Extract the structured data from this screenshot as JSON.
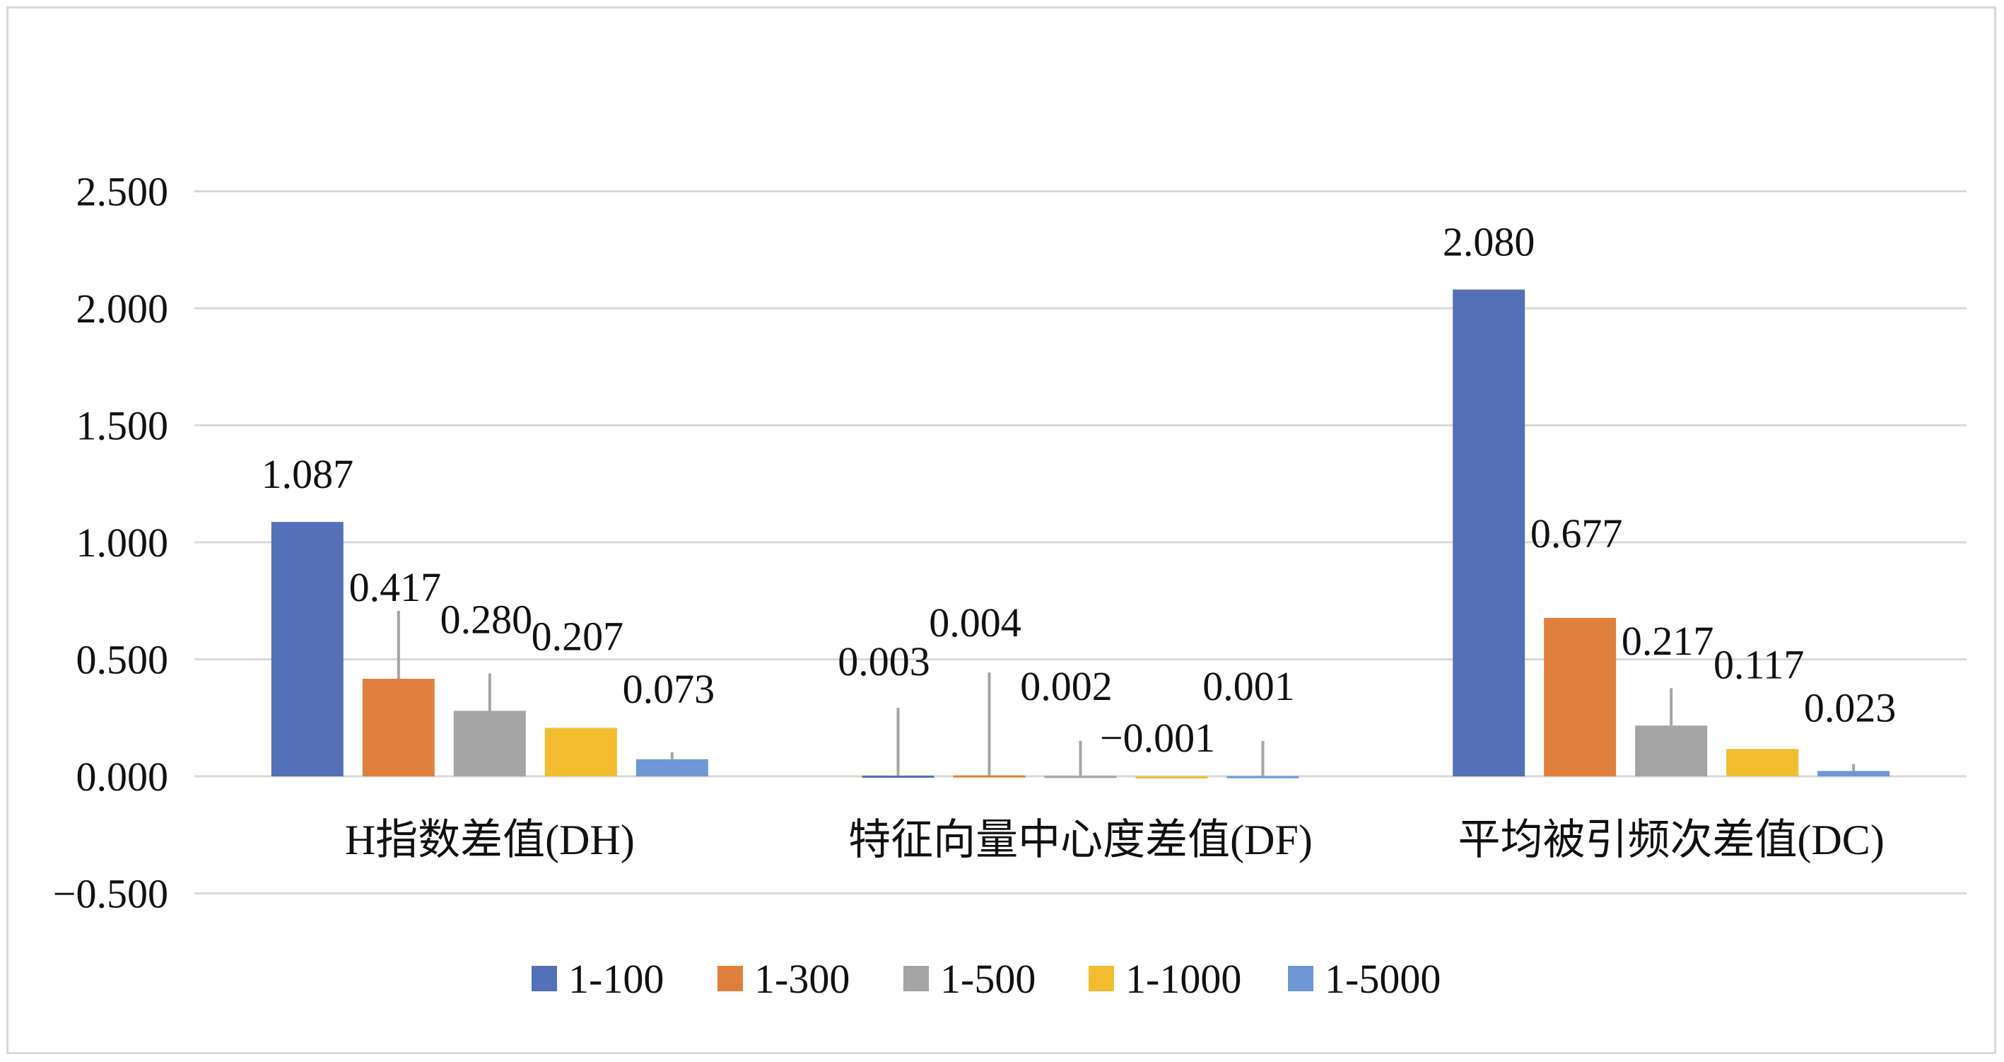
{
  "chart_data": {
    "type": "bar",
    "title": "",
    "xlabel": "",
    "ylabel": "",
    "ylim": [
      -0.5,
      2.5
    ],
    "yticks": [
      2.5,
      2.0,
      1.5,
      1.0,
      0.5,
      0.0,
      -0.5
    ],
    "ytick_labels": [
      "2.500",
      "2.000",
      "1.500",
      "1.000",
      "0.500",
      "0.000",
      "−0.500"
    ],
    "grid": true,
    "legend_position": "bottom",
    "categories": [
      "H指数差值(DH)",
      "特征向量中心度差值(DF)",
      "平均被引频次差值(DC)"
    ],
    "series": [
      {
        "name": "1-100",
        "color": "#5470b8",
        "values": [
          1.087,
          0.003,
          2.08
        ],
        "labels": [
          "1.087",
          "0.003",
          "2.080"
        ],
        "error": [
          null,
          0.29,
          null
        ]
      },
      {
        "name": "1-300",
        "color": "#e0803f",
        "values": [
          0.417,
          0.004,
          0.677
        ],
        "labels": [
          "0.417",
          "0.004",
          "0.677"
        ],
        "error": [
          0.29,
          0.44,
          null
        ]
      },
      {
        "name": "1-500",
        "color": "#a5a5a5",
        "values": [
          0.28,
          0.002,
          0.217
        ],
        "labels": [
          "0.280",
          "0.002",
          "0.217"
        ],
        "error": [
          0.16,
          0.15,
          0.16
        ]
      },
      {
        "name": "1-1000",
        "color": "#f2bd2f",
        "values": [
          0.207,
          -0.001,
          0.117
        ],
        "labels": [
          "0.207",
          "−0.001",
          "0.117"
        ],
        "error": [
          null,
          null,
          null
        ]
      },
      {
        "name": "1-5000",
        "color": "#6f97d5",
        "values": [
          0.073,
          0.001,
          0.023
        ],
        "labels": [
          "0.073",
          "0.001",
          "0.023"
        ],
        "error": [
          0.03,
          0.15,
          0.03
        ]
      }
    ]
  }
}
